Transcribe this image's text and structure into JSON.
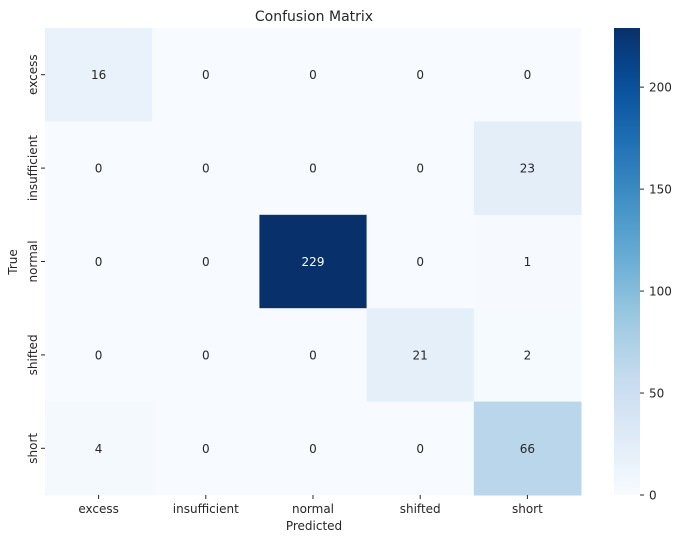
{
  "chart_data": {
    "type": "heatmap",
    "title": "Confusion Matrix",
    "xlabel": "Predicted",
    "ylabel": "True",
    "x_categories": [
      "excess",
      "insufficient",
      "normal",
      "shifted",
      "short"
    ],
    "y_categories": [
      "excess",
      "insufficient",
      "normal",
      "shifted",
      "short"
    ],
    "values": [
      [
        16,
        0,
        0,
        0,
        0
      ],
      [
        0,
        0,
        0,
        0,
        23
      ],
      [
        0,
        0,
        229,
        0,
        1
      ],
      [
        0,
        0,
        0,
        21,
        2
      ],
      [
        4,
        0,
        0,
        0,
        66
      ]
    ],
    "colormap": "Blues",
    "vmin": 0,
    "vmax": 229,
    "colorbar_ticks": [
      0,
      50,
      100,
      150,
      200
    ]
  }
}
